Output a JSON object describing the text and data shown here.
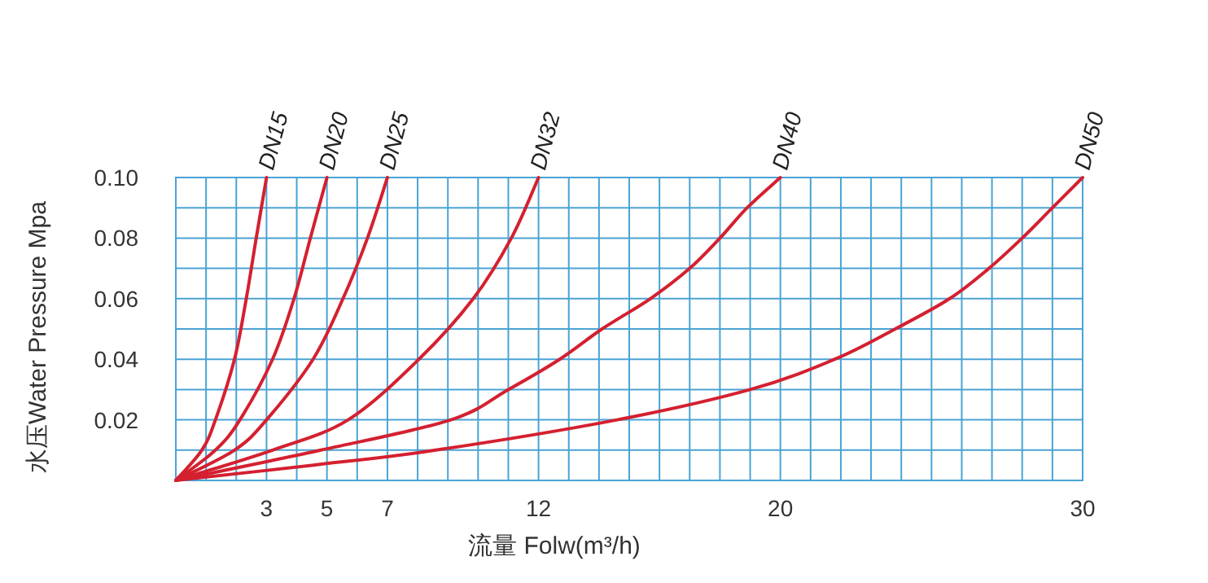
{
  "chart_data": {
    "type": "line",
    "xlabel": "流量 Folw(m³/h)",
    "ylabel": "水压Water Pressure Mpa",
    "xlim": [
      0,
      30
    ],
    "ylim": [
      0,
      0.1
    ],
    "xticks": [
      {
        "value": 0,
        "label": null
      },
      {
        "value": 1,
        "label": null
      },
      {
        "value": 2,
        "label": null
      },
      3,
      {
        "value": 4,
        "label": null
      },
      5,
      {
        "value": 6,
        "label": null
      },
      7,
      {
        "value": 8,
        "label": null
      },
      {
        "value": 9,
        "label": null
      },
      {
        "value": 10,
        "label": null
      },
      {
        "value": 11,
        "label": null
      },
      12,
      {
        "value": 13,
        "label": null
      },
      {
        "value": 14,
        "label": null
      },
      {
        "value": 15,
        "label": null
      },
      {
        "value": 16,
        "label": null
      },
      {
        "value": 17,
        "label": null
      },
      {
        "value": 18,
        "label": null
      },
      {
        "value": 19,
        "label": null
      },
      20,
      {
        "value": 21,
        "label": null
      },
      {
        "value": 22,
        "label": null
      },
      {
        "value": 23,
        "label": null
      },
      {
        "value": 24,
        "label": null
      },
      {
        "value": 25,
        "label": null
      },
      {
        "value": 26,
        "label": null
      },
      {
        "value": 27,
        "label": null
      },
      {
        "value": 28,
        "label": null
      },
      {
        "value": 29,
        "label": null
      },
      30
    ],
    "yticks": [
      {
        "value": 0,
        "label": null
      },
      {
        "value": 0.01,
        "label": null
      },
      {
        "value": 0.02,
        "label": "0.02"
      },
      {
        "value": 0.03,
        "label": null
      },
      {
        "value": 0.04,
        "label": "0.04"
      },
      {
        "value": 0.05,
        "label": null
      },
      {
        "value": 0.06,
        "label": "0.06"
      },
      {
        "value": 0.07,
        "label": null
      },
      {
        "value": 0.08,
        "label": "0.08"
      },
      {
        "value": 0.09,
        "label": null
      },
      {
        "value": 0.1,
        "label": "0.10"
      }
    ],
    "grid": true,
    "marker": "none",
    "line_style": "solid",
    "series": [
      {
        "name": "DN15",
        "color": "#d42030",
        "x": [
          0,
          0.86,
          1.31,
          1.94,
          2.33,
          2.66,
          3
        ],
        "values": [
          0,
          0.01,
          0.02,
          0.04,
          0.06,
          0.08,
          0.1
        ]
      },
      {
        "name": "DN20",
        "color": "#d42030",
        "x": [
          0,
          1.31,
          2.12,
          3.2,
          3.91,
          4.45,
          5
        ],
        "values": [
          0,
          0.01,
          0.02,
          0.04,
          0.06,
          0.08,
          0.1
        ]
      },
      {
        "name": "DN25",
        "color": "#d42030",
        "x": [
          0,
          1.94,
          3.0,
          4.54,
          5.53,
          6.34,
          7
        ],
        "values": [
          0,
          0.01,
          0.02,
          0.04,
          0.06,
          0.08,
          0.1
        ]
      },
      {
        "name": "DN32",
        "color": "#d42030",
        "x": [
          0,
          3.2,
          5.7,
          8.04,
          9.84,
          11.1,
          12
        ],
        "values": [
          0,
          0.01,
          0.02,
          0.04,
          0.06,
          0.08,
          0.1
        ]
      },
      {
        "name": "DN40",
        "color": "#d42030",
        "x": [
          0,
          4.8,
          9.1,
          11.0,
          12.7,
          14.1,
          15.7,
          17.0,
          18.0,
          18.9,
          20
        ],
        "values": [
          0,
          0.01,
          0.02,
          0.03,
          0.04,
          0.05,
          0.06,
          0.07,
          0.08,
          0.09,
          0.1
        ]
      },
      {
        "name": "DN50",
        "color": "#d42030",
        "x": [
          0,
          4.5,
          8.6,
          14.6,
          19.0,
          21.8,
          23.8,
          25.6,
          26.9,
          28.0,
          29.0,
          30
        ],
        "values": [
          0,
          0.005,
          0.01,
          0.02,
          0.03,
          0.04,
          0.05,
          0.06,
          0.07,
          0.08,
          0.09,
          0.1
        ]
      }
    ]
  }
}
